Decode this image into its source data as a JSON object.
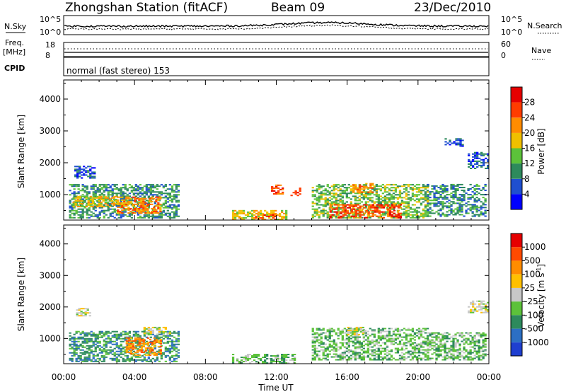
{
  "header": {
    "station": "Zhongshan Station (fitACF)",
    "beam": "Beam 09",
    "date": "23/Dec/2010"
  },
  "top_panels": {
    "nsky_label": "N.Sky",
    "nsearch_label": "N.Search",
    "noise_ticks": [
      "10^5",
      "10^0"
    ],
    "freq_label_1": "Freq.",
    "freq_label_2": "[MHz]",
    "freq_ticks": [
      "18",
      "8"
    ],
    "nave_label": "Nave",
    "nave_ticks": [
      "60",
      "0"
    ],
    "cpid_label": "CPID",
    "cpid_text": "normal (fast stereo) 153"
  },
  "x_axis": {
    "label": "Time UT",
    "tick_labels": [
      "00:00",
      "04:00",
      "08:00",
      "12:00",
      "16:00",
      "20:00",
      "00:00"
    ]
  },
  "chart_data": [
    {
      "type": "heatmap",
      "name": "power",
      "x": [
        "00:00",
        "04:00",
        "08:00",
        "12:00",
        "16:00",
        "20:00",
        "00:00"
      ],
      "xlabel": "Time UT",
      "ylabel": "Slant Range [km]",
      "yticks": [
        1000,
        2000,
        3000,
        4000
      ],
      "ylim": [
        200,
        4600
      ],
      "colorbar": {
        "label": "Power [dB]",
        "tick_labels": [
          "4",
          "8",
          "12",
          "16",
          "20",
          "24",
          "28"
        ],
        "colors": [
          "#0000ff",
          "#1f4fd0",
          "#2d8a5c",
          "#5cc23a",
          "#f0c000",
          "#ff8c00",
          "#ff3c00",
          "#e60000"
        ]
      },
      "regions": [
        {
          "t0": 0.3,
          "t1": 6.5,
          "r0": 250,
          "r1": 1300,
          "level": 2
        },
        {
          "t0": 0.5,
          "t1": 3.0,
          "r0": 600,
          "r1": 950,
          "level": 4
        },
        {
          "t0": 3.0,
          "t1": 5.5,
          "r0": 400,
          "r1": 900,
          "level": 5
        },
        {
          "t0": 0.6,
          "t1": 1.8,
          "r0": 1500,
          "r1": 1900,
          "level": 1
        },
        {
          "t0": 9.5,
          "t1": 12.5,
          "r0": 200,
          "r1": 500,
          "level": 4
        },
        {
          "t0": 10.8,
          "t1": 12.0,
          "r0": 200,
          "r1": 350,
          "level": 6
        },
        {
          "t0": 11.7,
          "t1": 12.3,
          "r0": 1000,
          "r1": 1300,
          "level": 6
        },
        {
          "t0": 12.8,
          "t1": 13.3,
          "r0": 950,
          "r1": 1200,
          "level": 6
        },
        {
          "t0": 14.0,
          "t1": 20.5,
          "r0": 250,
          "r1": 1300,
          "level": 3
        },
        {
          "t0": 15.0,
          "t1": 19.0,
          "r0": 250,
          "r1": 700,
          "level": 6
        },
        {
          "t0": 16.3,
          "t1": 17.5,
          "r0": 1050,
          "r1": 1350,
          "level": 5
        },
        {
          "t0": 20.5,
          "t1": 23.8,
          "r0": 300,
          "r1": 1300,
          "level": 2
        },
        {
          "t0": 21.5,
          "t1": 22.5,
          "r0": 2500,
          "r1": 2750,
          "level": 1
        },
        {
          "t0": 22.8,
          "t1": 24.0,
          "r0": 1800,
          "r1": 2300,
          "level": 1
        }
      ]
    },
    {
      "type": "heatmap",
      "name": "velocity",
      "x": [
        "00:00",
        "04:00",
        "08:00",
        "12:00",
        "16:00",
        "20:00",
        "00:00"
      ],
      "xlabel": "Time UT",
      "ylabel": "Slant Range [km]",
      "yticks": [
        1000,
        2000,
        3000,
        4000
      ],
      "ylim": [
        200,
        4600
      ],
      "colorbar": {
        "label": "Velocity [m s",
        "label_sup": "-1",
        "label_end": "]",
        "tick_labels": [
          "1000",
          "500",
          "100",
          "25",
          "-25",
          "-100",
          "-500",
          "-1000"
        ],
        "colors": [
          "#1f3fd0",
          "#2c6fc4",
          "#2d8a5c",
          "#5cc23a",
          "#c8c8c8",
          "#ffc000",
          "#ff8c00",
          "#ff4a00",
          "#e60000"
        ]
      },
      "regions": [
        {
          "t0": 0.3,
          "t1": 6.5,
          "r0": 250,
          "r1": 1200,
          "level": 2
        },
        {
          "t0": 3.5,
          "t1": 5.5,
          "r0": 450,
          "r1": 1000,
          "level": 6
        },
        {
          "t0": 0.7,
          "t1": 1.5,
          "r0": 1700,
          "r1": 1950,
          "level": 4
        },
        {
          "t0": 4.5,
          "t1": 6.0,
          "r0": 1100,
          "r1": 1350,
          "level": 4
        },
        {
          "t0": 9.5,
          "t1": 13.0,
          "r0": 200,
          "r1": 500,
          "level": 3
        },
        {
          "t0": 14.0,
          "t1": 20.5,
          "r0": 300,
          "r1": 1300,
          "level": 3
        },
        {
          "t0": 16.0,
          "t1": 17.0,
          "r0": 1100,
          "r1": 1350,
          "level": 4
        },
        {
          "t0": 20.5,
          "t1": 23.8,
          "r0": 300,
          "r1": 1200,
          "level": 3
        },
        {
          "t0": 22.8,
          "t1": 24.0,
          "r0": 1800,
          "r1": 2200,
          "level": 4
        }
      ]
    }
  ]
}
